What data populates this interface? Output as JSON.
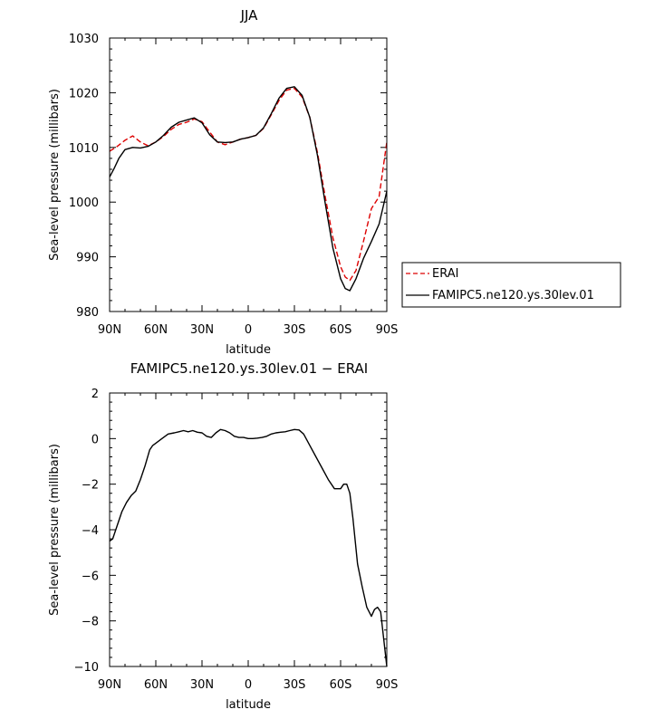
{
  "chart_data": [
    {
      "type": "line",
      "title": "JJA",
      "xlabel": "latitude",
      "ylabel": "Sea-level pressure (millibars)",
      "xlim": [
        90,
        -90
      ],
      "ylim": [
        980,
        1030
      ],
      "x_ticks": [
        90,
        60,
        30,
        0,
        -30,
        -60,
        -90
      ],
      "x_tick_labels": [
        "90N",
        "60N",
        "30N",
        "0",
        "30S",
        "60S",
        "90S"
      ],
      "y_ticks": [
        980,
        990,
        1000,
        1010,
        1020,
        1030
      ],
      "y_tick_labels": [
        "980",
        "990",
        "1000",
        "1010",
        "1020",
        "1030"
      ],
      "grid": false,
      "legend_position": "right",
      "series": [
        {
          "name": "ERAI",
          "color": "#dd0000",
          "dash": "dashed",
          "x": [
            90,
            85,
            80,
            75,
            70,
            65,
            60,
            55,
            50,
            45,
            40,
            35,
            30,
            25,
            20,
            15,
            10,
            5,
            0,
            -5,
            -10,
            -15,
            -20,
            -25,
            -30,
            -35,
            -40,
            -45,
            -50,
            -55,
            -60,
            -63,
            -66,
            -70,
            -75,
            -80,
            -85,
            -90
          ],
          "y": [
            1009.3,
            1010.2,
            1011.3,
            1012.1,
            1011.0,
            1010.3,
            1011.0,
            1012.0,
            1013.3,
            1014.2,
            1014.6,
            1015.2,
            1014.7,
            1012.8,
            1011.0,
            1010.5,
            1011.0,
            1011.5,
            1011.8,
            1012.2,
            1013.5,
            1016.0,
            1018.6,
            1020.5,
            1020.8,
            1019.2,
            1015.5,
            1009.0,
            1001.0,
            993.5,
            988.2,
            986.3,
            985.7,
            987.5,
            993.0,
            998.8,
            1001.0,
            1011.0
          ]
        },
        {
          "name": "FAMIPC5.ne120.ys.30lev.01",
          "color": "#000000",
          "dash": "solid",
          "x": [
            90,
            87,
            84,
            80,
            75,
            70,
            65,
            60,
            55,
            50,
            45,
            40,
            35,
            30,
            25,
            20,
            15,
            10,
            5,
            0,
            -5,
            -10,
            -15,
            -20,
            -25,
            -30,
            -35,
            -40,
            -45,
            -50,
            -55,
            -60,
            -63,
            -66,
            -70,
            -75,
            -80,
            -85,
            -90
          ],
          "y": [
            1004.6,
            1006.2,
            1008.0,
            1009.6,
            1010.0,
            1009.9,
            1010.2,
            1011.0,
            1012.2,
            1013.7,
            1014.6,
            1015.0,
            1015.4,
            1014.5,
            1012.3,
            1011.0,
            1010.9,
            1011.0,
            1011.5,
            1011.8,
            1012.2,
            1013.6,
            1016.2,
            1019.0,
            1020.8,
            1021.1,
            1019.5,
            1015.5,
            1008.5,
            999.8,
            991.6,
            986.0,
            984.2,
            983.8,
            986.0,
            989.8,
            992.8,
            996.0,
            1002.0
          ]
        }
      ]
    },
    {
      "type": "line",
      "title": "FAMIPC5.ne120.ys.30lev.01 − ERAI",
      "xlabel": "latitude",
      "ylabel": "Sea-level pressure (millibars)",
      "xlim": [
        90,
        -90
      ],
      "ylim": [
        -10,
        2
      ],
      "x_ticks": [
        90,
        60,
        30,
        0,
        -30,
        -60,
        -90
      ],
      "x_tick_labels": [
        "90N",
        "60N",
        "30N",
        "0",
        "30S",
        "60S",
        "90S"
      ],
      "y_ticks": [
        -10,
        -8,
        -6,
        -4,
        -2,
        0,
        2
      ],
      "y_tick_labels": [
        "−10",
        "−8",
        "−6",
        "−4",
        "−2",
        "0",
        "2"
      ],
      "grid": false,
      "series": [
        {
          "color": "#000000",
          "dash": "solid",
          "x": [
            90,
            88,
            85,
            82,
            79,
            76,
            73,
            70,
            67,
            64,
            62,
            60,
            56,
            52,
            48,
            45,
            42,
            39,
            36,
            33,
            30,
            27,
            24,
            21,
            18,
            15,
            12,
            9,
            6,
            3,
            0,
            -3,
            -6,
            -9,
            -12,
            -15,
            -18,
            -21,
            -24,
            -27,
            -30,
            -33,
            -36,
            -40,
            -44,
            -48,
            -52,
            -56,
            -60,
            -62,
            -64,
            -66,
            -68,
            -71,
            -74,
            -77,
            -80,
            -82,
            -84,
            -86,
            -88,
            -90
          ],
          "y": [
            -4.5,
            -4.4,
            -3.8,
            -3.2,
            -2.8,
            -2.5,
            -2.3,
            -1.8,
            -1.2,
            -0.5,
            -0.3,
            -0.2,
            0.0,
            0.2,
            0.25,
            0.3,
            0.35,
            0.3,
            0.35,
            0.28,
            0.25,
            0.1,
            0.05,
            0.25,
            0.4,
            0.35,
            0.25,
            0.1,
            0.05,
            0.05,
            0.0,
            0.0,
            0.02,
            0.05,
            0.1,
            0.2,
            0.25,
            0.28,
            0.3,
            0.35,
            0.4,
            0.38,
            0.2,
            -0.3,
            -0.8,
            -1.3,
            -1.8,
            -2.2,
            -2.2,
            -2.0,
            -2.0,
            -2.4,
            -3.5,
            -5.5,
            -6.5,
            -7.4,
            -7.8,
            -7.5,
            -7.4,
            -7.6,
            -8.8,
            -10.0
          ]
        }
      ]
    }
  ]
}
